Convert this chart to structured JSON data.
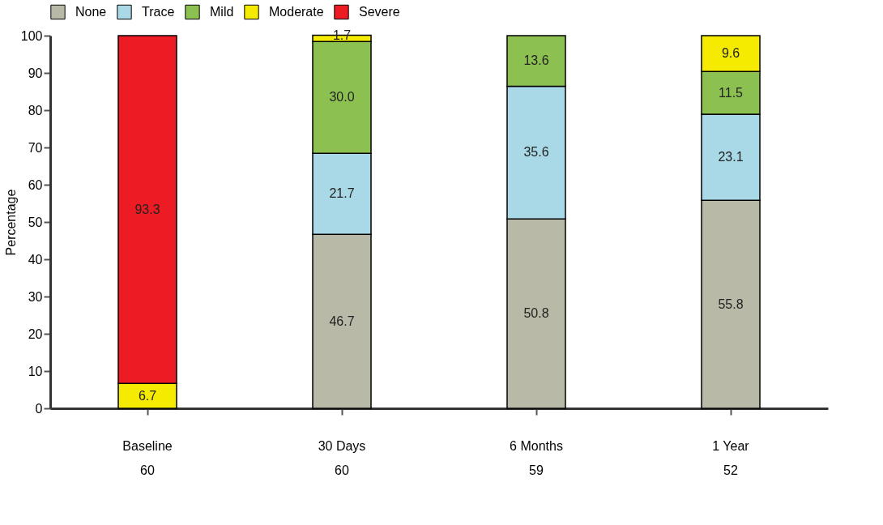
{
  "chart_data": {
    "type": "bar",
    "stacked": true,
    "ylabel": "Percentage",
    "categories": [
      "Baseline\n60",
      "30 Days\n60",
      "6 Months\n59",
      "1 Year\n52"
    ],
    "series": [
      {
        "name": "None",
        "color": "#b9b9a8",
        "values": [
          null,
          46.7,
          50.8,
          55.8
        ],
        "value_labels": [
          null,
          "46.7",
          "50.8",
          "55.8"
        ]
      },
      {
        "name": "Trace",
        "color": "#a9d9e6",
        "values": [
          null,
          21.7,
          35.6,
          23.1
        ],
        "value_labels": [
          null,
          "21.7",
          "35.6",
          "23.1"
        ]
      },
      {
        "name": "Mild",
        "color": "#8cc152",
        "values": [
          null,
          30.0,
          13.6,
          11.5
        ],
        "value_labels": [
          null,
          "30.0",
          "13.6",
          "11.5"
        ]
      },
      {
        "name": "Moderate",
        "color": "#f5eb00",
        "values": [
          6.7,
          1.7,
          null,
          9.6
        ],
        "value_labels": [
          "6.7",
          "1.7",
          null,
          "9.6"
        ]
      },
      {
        "name": "Severe",
        "color": "#ed1c24",
        "values": [
          93.3,
          null,
          null,
          null
        ],
        "value_labels": [
          "93.3",
          null,
          null,
          null
        ]
      }
    ],
    "ylim": [
      0,
      100
    ],
    "yticks": [
      0,
      10,
      20,
      30,
      40,
      50,
      60,
      70,
      80,
      90,
      100
    ],
    "legend": "top",
    "grid": false
  }
}
